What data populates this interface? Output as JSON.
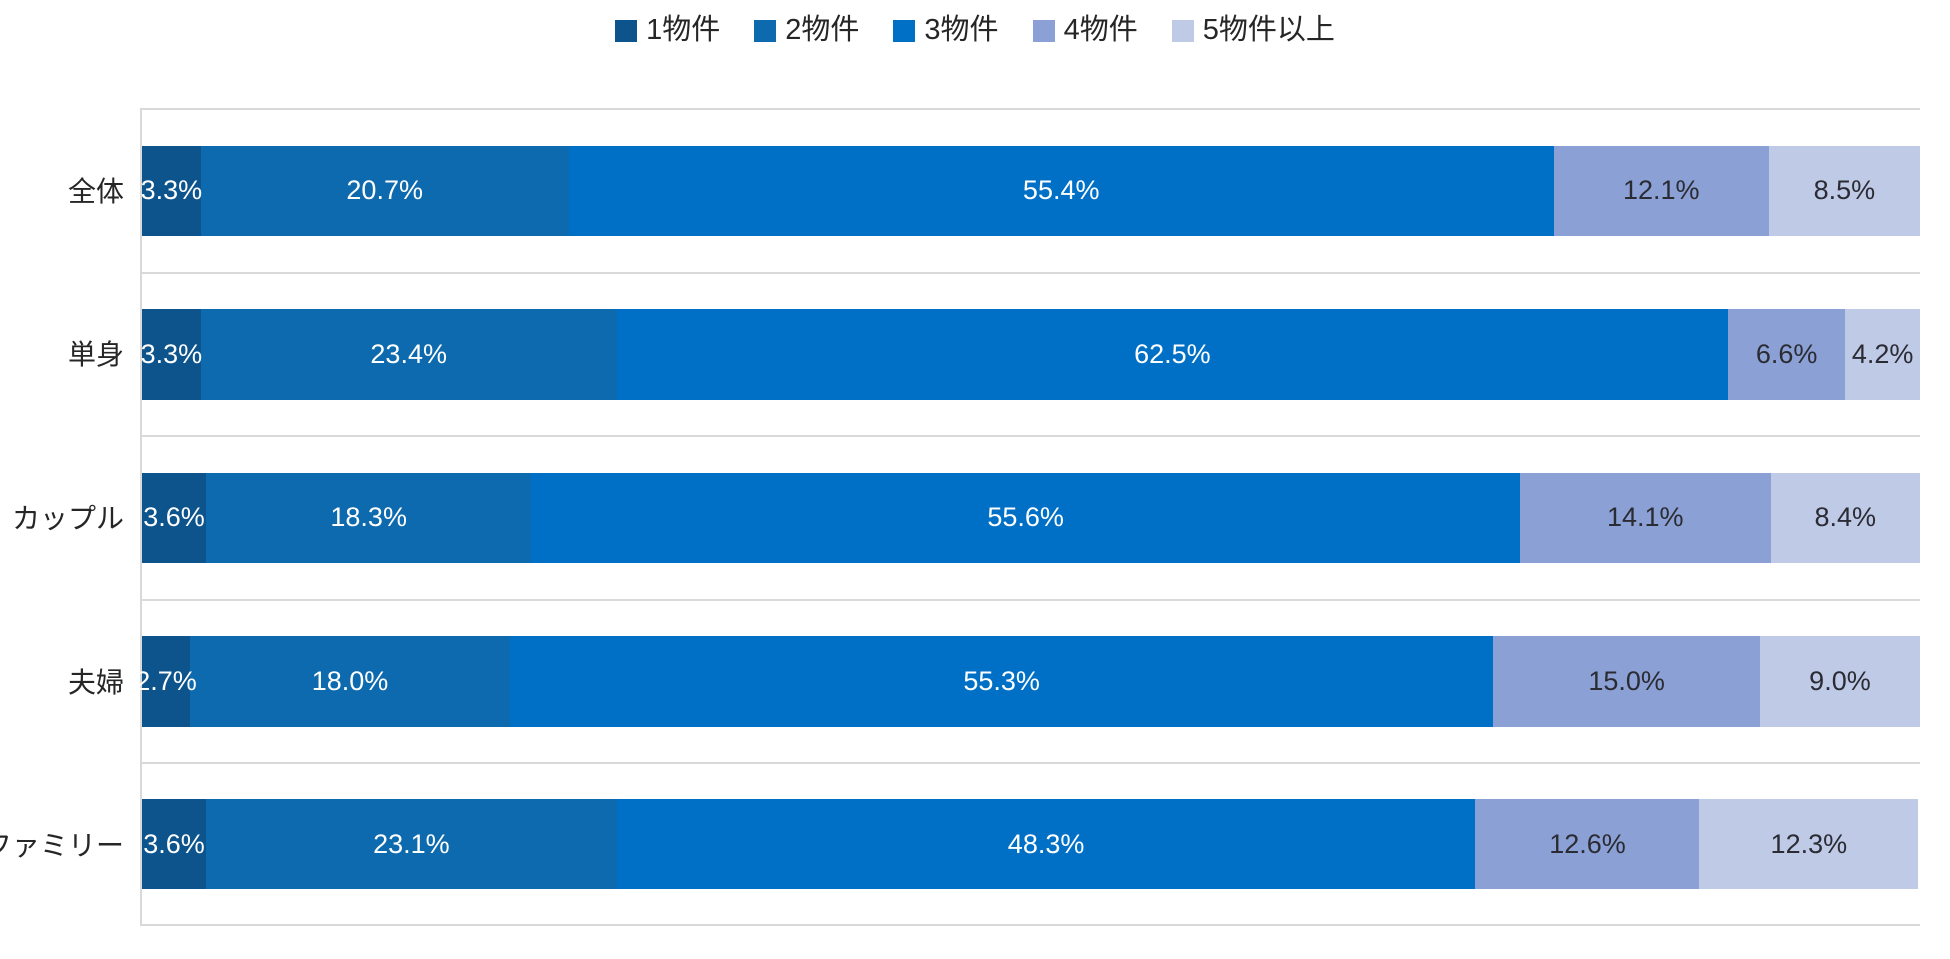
{
  "chart_data": {
    "type": "bar",
    "orientation": "horizontal",
    "stacked": true,
    "title": "",
    "xlabel": "",
    "ylabel": "",
    "xlim": [
      0,
      100
    ],
    "unit": "%",
    "legend_position": "top",
    "grid": "horizontal band separators",
    "gridline_color": "#d9d9d9",
    "background_color": "#ffffff",
    "categories": [
      "全体",
      "単身",
      "カップル",
      "夫婦",
      "ファミリー"
    ],
    "series": [
      {
        "name": "1物件",
        "color": "#0e548c",
        "label_color": "#ffffff",
        "values": [
          3.3,
          3.3,
          3.6,
          2.7,
          3.6
        ]
      },
      {
        "name": "2物件",
        "color": "#0d6aae",
        "label_color": "#ffffff",
        "values": [
          20.7,
          23.4,
          18.3,
          18.0,
          23.1
        ]
      },
      {
        "name": "3物件",
        "color": "#0070c7",
        "label_color": "#ffffff",
        "values": [
          55.4,
          62.5,
          55.6,
          55.3,
          48.3
        ]
      },
      {
        "name": "4物件",
        "color": "#8ba0d4",
        "label_color": "#2b2b33",
        "values": [
          12.1,
          6.6,
          14.1,
          15.0,
          12.6
        ]
      },
      {
        "name": "5物件以上",
        "color": "#bfcae7",
        "label_color": "#2b2b33",
        "values": [
          8.5,
          4.2,
          8.4,
          9.0,
          12.3
        ]
      }
    ],
    "value_format": "one_decimal_percent"
  }
}
